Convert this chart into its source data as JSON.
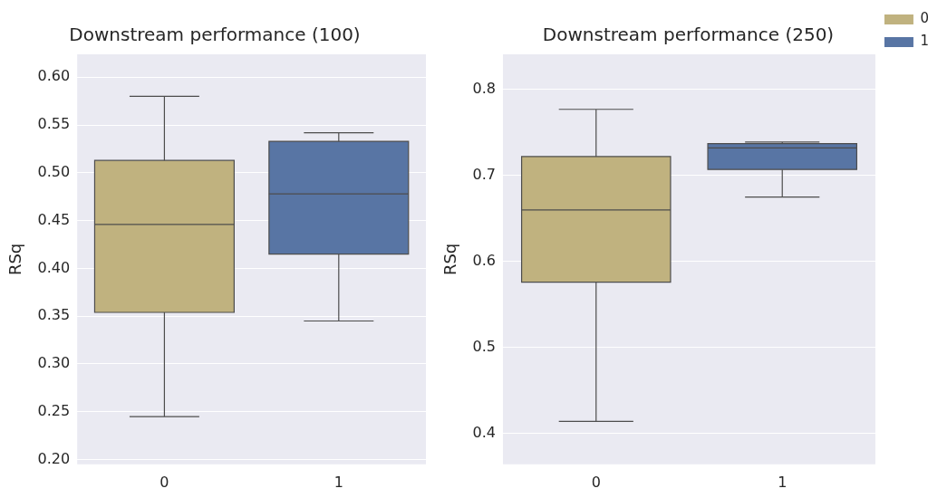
{
  "chart_data": [
    {
      "type": "box",
      "title": "Downstream performance (100)",
      "ylabel": "RSq",
      "categories": [
        "0",
        "1"
      ],
      "ylim": [
        0.195,
        0.624
      ],
      "yticks": [
        {
          "value": 0.2,
          "label": "0.20"
        },
        0.25,
        {
          "value": 0.3,
          "label": "0.30"
        },
        0.35,
        {
          "value": 0.4,
          "label": "0.40"
        },
        0.45,
        {
          "value": 0.5,
          "label": "0.50"
        },
        0.55,
        {
          "value": 0.6,
          "label": "0.60"
        }
      ],
      "grid": "y",
      "legend": false,
      "series": [
        {
          "color": "#c0b27f",
          "boxes": [
            {
              "low": 0.245,
              "q1": 0.354,
              "median": 0.446,
              "q3": 0.513,
              "high": 0.58
            },
            null
          ]
        },
        {
          "color": "#5875a4",
          "boxes": [
            null,
            {
              "low": 0.345,
              "q1": 0.415,
              "median": 0.478,
              "q3": 0.533,
              "high": 0.542
            }
          ]
        }
      ]
    },
    {
      "type": "box",
      "title": "Downstream performance (250)",
      "ylabel": "RSq",
      "categories": [
        "0",
        "1"
      ],
      "ylim": [
        0.364,
        0.841
      ],
      "yticks": [
        0.4,
        0.5,
        0.6,
        0.7,
        0.8
      ],
      "grid": "y",
      "legend": "top right",
      "series": [
        {
          "name": "0",
          "color": "#c0b27f",
          "boxes": [
            {
              "low": 0.414,
              "q1": 0.576,
              "median": 0.66,
              "q3": 0.722,
              "high": 0.777
            },
            null
          ]
        },
        {
          "name": "1",
          "color": "#5875a4",
          "boxes": [
            null,
            {
              "low": 0.675,
              "q1": 0.707,
              "median": 0.732,
              "q3": 0.737,
              "high": 0.739
            }
          ]
        }
      ]
    }
  ]
}
